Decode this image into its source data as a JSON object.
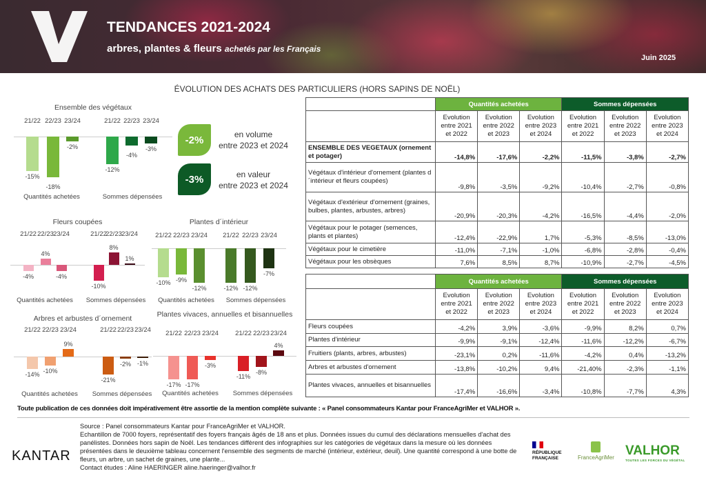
{
  "header": {
    "title": "TENDANCES 2021-2024",
    "subtitle_bold": "arbres, plantes & fleurs",
    "subtitle_italic": "achetés par les Français",
    "date": "Juin 2025",
    "logo": "V"
  },
  "main_title": "ÉVOLUTION DES ACHATS DES PARTICULIERS (HORS SAPINS DE NOËL)",
  "badges": [
    {
      "value": "-2%",
      "label1": "en volume",
      "label2": "entre 2023 et 2024",
      "color": "#7ab83b"
    },
    {
      "value": "-3%",
      "label1": "en valeur",
      "label2": "entre 2023 et 2024",
      "color": "#0d5a26"
    }
  ],
  "chart_data": [
    {
      "type": "bar",
      "title": "Ensemble des végétaux",
      "groups": [
        "Quantités achetées",
        "Sommes dépensées"
      ],
      "categories": [
        "21/22",
        "22/23",
        "23/24"
      ],
      "series": [
        {
          "name": "Quantités achetées",
          "values": [
            -15,
            -18,
            -2
          ],
          "labels": [
            "-15%",
            "-18%",
            "-2%"
          ],
          "colors": [
            "#b5dc8e",
            "#79b83a",
            "#5a9a2b"
          ]
        },
        {
          "name": "Sommes dépensées",
          "values": [
            -12,
            -4,
            -3
          ],
          "labels": [
            "-12%",
            "-4%",
            "-3%"
          ],
          "colors": [
            "#2ea84a",
            "#0e6b2e",
            "#0a4a1e"
          ]
        }
      ]
    },
    {
      "type": "bar",
      "title": "Fleurs coupées",
      "groups": [
        "Quantités achetées",
        "Sommes dépensées"
      ],
      "categories": [
        "21/22",
        "22/23",
        "23/24"
      ],
      "series": [
        {
          "name": "Quantités achetées",
          "values": [
            -4,
            4,
            -4
          ],
          "labels": [
            "-4%",
            "4%",
            "-4%"
          ],
          "colors": [
            "#f3b3c4",
            "#ea7f9b",
            "#d9577a"
          ]
        },
        {
          "name": "Sommes dépensées",
          "values": [
            -10,
            8,
            1
          ],
          "labels": [
            "-10%",
            "8%",
            "1%"
          ],
          "colors": [
            "#d31f4f",
            "#8c1434",
            "#3a0a15"
          ]
        }
      ]
    },
    {
      "type": "bar",
      "title": "Plantes d´intérieur",
      "groups": [
        "Quantités achetées",
        "Sommes dépensées"
      ],
      "categories": [
        "21/22",
        "22/23",
        "23/24"
      ],
      "series": [
        {
          "name": "Quantités achetées",
          "values": [
            -10,
            -9,
            -12
          ],
          "labels": [
            "-10%",
            "-9%",
            "-12%"
          ],
          "colors": [
            "#b5dc8e",
            "#79b83a",
            "#5a8f2f"
          ]
        },
        {
          "name": "Sommes dépensées",
          "values": [
            -12,
            -12,
            -7
          ],
          "labels": [
            "-12%",
            "-12%",
            "-7%"
          ],
          "colors": [
            "#4a7a2a",
            "#35591e",
            "#1e3312"
          ]
        }
      ]
    },
    {
      "type": "bar",
      "title": "Arbres et arbustes d´ornement",
      "groups": [
        "Quantités achetées",
        "Sommes dépensées"
      ],
      "categories": [
        "21/22",
        "22/23",
        "23/24"
      ],
      "series": [
        {
          "name": "Quantités achetées",
          "values": [
            -14,
            -10,
            9
          ],
          "labels": [
            "-14%",
            "-10%",
            "9%"
          ],
          "colors": [
            "#f4c7ab",
            "#f0a070",
            "#e46a17"
          ]
        },
        {
          "name": "Sommes dépensées",
          "values": [
            -21,
            -2,
            -1
          ],
          "labels": [
            "-21%",
            "-2%",
            "-1%"
          ],
          "colors": [
            "#cc5c12",
            "#8a3d0a",
            "#3a1a05"
          ]
        }
      ]
    },
    {
      "type": "bar",
      "title": "Plantes vivaces, annuelles et bisannuelles",
      "groups": [
        "Quantités achetées",
        "Sommes dépensées"
      ],
      "categories": [
        "21/22",
        "22/23",
        "23/24"
      ],
      "series": [
        {
          "name": "Quantités achetées",
          "values": [
            -17,
            -17,
            -3
          ],
          "labels": [
            "-17%",
            "-17%",
            "-3%"
          ],
          "colors": [
            "#f5928f",
            "#ef5a55",
            "#e8312b"
          ]
        },
        {
          "name": "Sommes dépensées",
          "values": [
            -11,
            -8,
            4
          ],
          "labels": [
            "-11%",
            "-8%",
            "4%"
          ],
          "colors": [
            "#d91f26",
            "#a1141b",
            "#5c0a10"
          ]
        }
      ]
    }
  ],
  "tables": {
    "group_headers": [
      "Quantités achetées",
      "Sommes dépensées"
    ],
    "col_headers": [
      "Evolution entre 2021 et 2022",
      "Evolution entre 2022 et 2023",
      "Evolution entre 2023 et 2024",
      "Evolution entre 2021 et 2022",
      "Evolution entre 2022 et 2023",
      "Evolution entre 2023 et 2024"
    ],
    "table1": [
      {
        "label": "ENSEMBLE DES VEGETAUX (ornement et potager)",
        "values": [
          "-14,8%",
          "-17,6%",
          "-2,2%",
          "-11,5%",
          "-3,8%",
          "-2,7%"
        ]
      },
      {
        "label": "Végétaux d'intérieur d'ornement (plantes d´intérieur et fleurs coupées)",
        "values": [
          "-9,8%",
          "-3,5%",
          "-9,2%",
          "-10,4%",
          "-2,7%",
          "-0,8%"
        ]
      },
      {
        "label": "Végétaux d'extérieur d'ornement (graines, bulbes, plantes, arbustes, arbres)",
        "values": [
          "-20,9%",
          "-20,3%",
          "-4,2%",
          "-16,5%",
          "-4,4%",
          "-2,0%"
        ]
      },
      {
        "label": "Végétaux pour le potager (semences, plants et plantes)",
        "values": [
          "-12,4%",
          "-22,9%",
          "1,7%",
          "-5,3%",
          "-8,5%",
          "-13,0%"
        ]
      },
      {
        "label": "Végétaux pour le cimetière",
        "values": [
          "-11,0%",
          "-7,1%",
          "-1,0%",
          "-6,8%",
          "-2,8%",
          "-0,4%"
        ]
      },
      {
        "label": "Végétaux pour les obsèques",
        "values": [
          "7,6%",
          "8,5%",
          "8,7%",
          "-10,9%",
          "-2,7%",
          "-4,5%"
        ]
      }
    ],
    "table2": [
      {
        "label": "Fleurs coupées",
        "values": [
          "-4,2%",
          "3,9%",
          "-3,6%",
          "-9,9%",
          "8,2%",
          "0,7%"
        ]
      },
      {
        "label": "Plantes d'intérieur",
        "values": [
          "-9,9%",
          "-9,1%",
          "-12,4%",
          "-11,6%",
          "-12,2%",
          "-6,7%"
        ]
      },
      {
        "label": "Fruitiers (plants, arbres, arbustes)",
        "values": [
          "-23,1%",
          "0,2%",
          "-11,6%",
          "-4,2%",
          "0,4%",
          "-13,2%"
        ]
      },
      {
        "label": "Arbres et arbustes d'ornement",
        "values": [
          "-13,8%",
          "-10,2%",
          "9,4%",
          "-21,40%",
          "-2,3%",
          "-1,1%"
        ]
      },
      {
        "label": "Plantes vivaces, annuelles et bisannuelles",
        "values": [
          "-17,4%",
          "-16,6%",
          "-3,4%",
          "-10,8%",
          "-7,7%",
          "4,3%"
        ]
      }
    ]
  },
  "footer": {
    "mention": "Toute publication de ces données doit impérativement être assortie de la mention complète suivante : « Panel consommateurs Kantar pour FranceAgriMer et VALHOR ».",
    "source": "Source : Panel consommateurs Kantar pour FranceAgriMer et VALHOR.",
    "details": "Echantillon de 7000 foyers, représentatif des foyers français âgés de 18 ans et plus. Données issues du cumul des déclarations mensuelles d'achat des panélistes. Données hors sapin de Noël. Les tendances diffèrent des infographies sur les catégories de végétaux dans la mesure où les données présentées dans le deuxième tableau concernent l'ensemble des segments de marché (intérieur, extérieur, deuil). Une quantité correspond à une botte de fleurs, un arbre, un sachet de graines, une plante...",
    "contact": "Contact études : Aline HAERINGER aline.haeringer@valhor.fr",
    "logos": {
      "kantar": "KANTAR",
      "rf1": "RÉPUBLIQUE",
      "rf2": "FRANÇAISE",
      "franceagrimer": "FranceAgriMer",
      "valhor": "VALHOR",
      "valhor_tag": "TOUTES LES FORCES DU VÉGÉTAL"
    }
  }
}
